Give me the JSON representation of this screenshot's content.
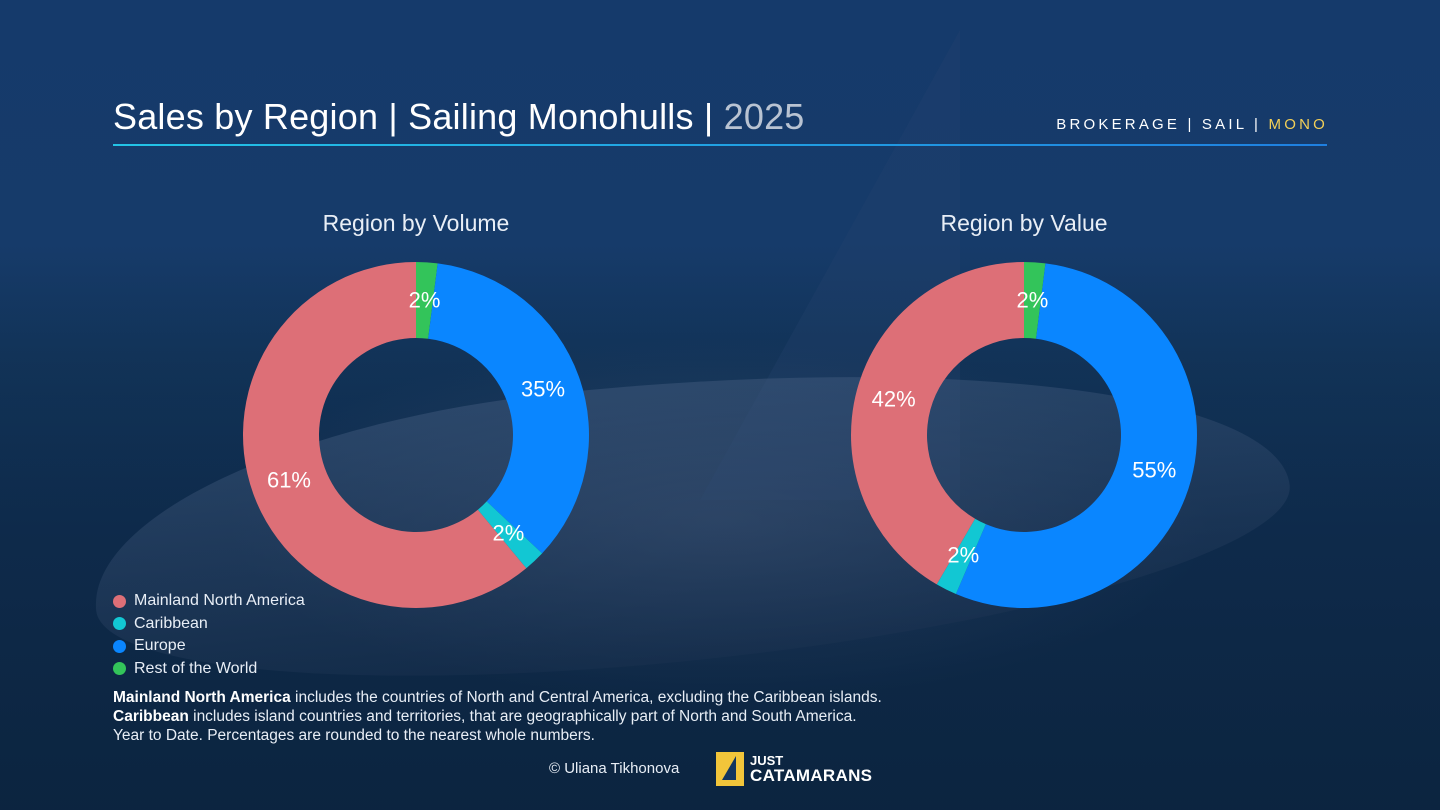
{
  "header": {
    "title_main": "Sales by Region | Sailing Monohulls | ",
    "title_year": "2025",
    "tagline_prefix": "BROKERAGE | SAIL | ",
    "tagline_highlight": "MONO"
  },
  "colors": {
    "mainland_north_america": "#dd6f77",
    "caribbean": "#12c7d3",
    "europe": "#0a86ff",
    "rest_of_world": "#33c45a",
    "accent_gold": "#f3cf57"
  },
  "chart_data": [
    {
      "type": "pie",
      "title": "Region by Volume",
      "slices": [
        {
          "name": "Rest of the World",
          "value": 2,
          "label": "2%"
        },
        {
          "name": "Europe",
          "value": 35,
          "label": "35%"
        },
        {
          "name": "Caribbean",
          "value": 2,
          "label": "2%"
        },
        {
          "name": "Mainland North America",
          "value": 61,
          "label": "61%"
        }
      ]
    },
    {
      "type": "pie",
      "title": "Region by Value",
      "slices": [
        {
          "name": "Rest of the World",
          "value": 2,
          "label": "2%"
        },
        {
          "name": "Europe",
          "value": 55,
          "label": "55%"
        },
        {
          "name": "Caribbean",
          "value": 2,
          "label": "2%"
        },
        {
          "name": "Mainland North America",
          "value": 42,
          "label": "42%"
        }
      ]
    }
  ],
  "legend": [
    {
      "label": "Mainland North America",
      "color": "#dd6f77"
    },
    {
      "label": "Caribbean",
      "color": "#12c7d3"
    },
    {
      "label": "Europe",
      "color": "#0a86ff"
    },
    {
      "label": "Rest of the World",
      "color": "#33c45a"
    }
  ],
  "notes": {
    "line1_bold": "Mainland North America",
    "line1_text": " includes the countries of North and Central America, excluding the Caribbean islands.",
    "line2_bold": "Caribbean",
    "line2_text": " includes island countries and territories, that are geographically part of North and South America.",
    "line3_text": "Year to Date. Percentages are rounded to the nearest whole numbers."
  },
  "footer": {
    "credit": "© Uliana Tikhonova",
    "logo_line1": "JUST",
    "logo_line2": "CATAMARANS"
  }
}
